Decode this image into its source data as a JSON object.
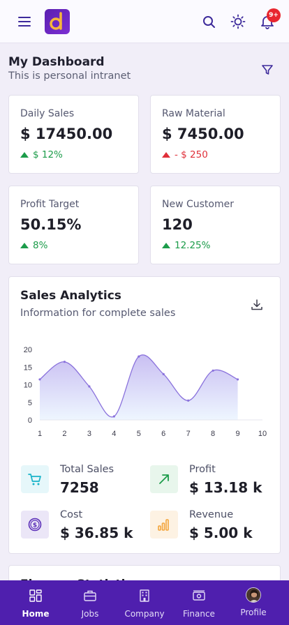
{
  "topbar": {
    "notification_count": "9+",
    "icons": [
      "menu-icon",
      "app-logo",
      "search-icon",
      "sun-icon",
      "bell-icon"
    ]
  },
  "header": {
    "title": "My Dashboard",
    "subtitle": "This is personal intranet"
  },
  "stats": [
    {
      "label": "Daily Sales",
      "value": "$ 17450.00",
      "change": "$ 12%",
      "trend": "up"
    },
    {
      "label": "Raw Material",
      "value": "$ 7450.00",
      "change": "- $ 250",
      "trend": "down"
    },
    {
      "label": "Profit Target",
      "value": "50.15%",
      "change": "8%",
      "trend": "up"
    },
    {
      "label": "New Customer",
      "value": "120",
      "change": "12.25%",
      "trend": "up"
    }
  ],
  "analytics": {
    "title": "Sales Analytics",
    "subtitle": "Information for complete sales"
  },
  "chart_data": {
    "type": "area",
    "x": [
      1,
      2,
      3,
      4,
      5,
      6,
      7,
      8,
      9,
      10
    ],
    "series": [
      {
        "values": [
          11.5,
          16.5,
          9.5,
          1,
          18,
          13,
          5.5,
          14,
          11.5,
          null
        ]
      }
    ],
    "xlim": [
      1,
      10
    ],
    "ylim": [
      0,
      20
    ],
    "xticks": [
      "1",
      "2",
      "3",
      "4",
      "5",
      "6",
      "7",
      "8",
      "9",
      "10"
    ],
    "yticks": [
      "0",
      "5",
      "10",
      "15",
      "20"
    ],
    "grid": false,
    "colors": {
      "line": "#8a72dc",
      "fill_top": "#c9bff2",
      "fill_bottom": "#eef6ff"
    }
  },
  "metrics": [
    {
      "label": "Total Sales",
      "value": "7258",
      "icon": "cart-icon",
      "color": "#19b4c9",
      "bg": "#e6f7fa"
    },
    {
      "label": "Profit",
      "value": "$ 13.18 k",
      "icon": "trend-up-icon",
      "color": "#1c9c4a",
      "bg": "#e8f6ec"
    },
    {
      "label": "Cost",
      "value": "$ 36.85 k",
      "icon": "dollar-coin-icon",
      "color": "#5b2fb8",
      "bg": "#ebe6f7"
    },
    {
      "label": "Revenue",
      "value": "$ 5.00 k",
      "icon": "bar-chart-icon",
      "color": "#f3a43a",
      "bg": "#fdf2e3"
    }
  ],
  "finance": {
    "title": "Finance Statistics"
  },
  "nav": {
    "items": [
      {
        "label": "Home",
        "icon": "home-grid-icon",
        "active": true
      },
      {
        "label": "Jobs",
        "icon": "briefcase-icon",
        "active": false
      },
      {
        "label": "Company",
        "icon": "building-icon",
        "active": false
      },
      {
        "label": "Finance",
        "icon": "money-icon",
        "active": false
      },
      {
        "label": "Profile",
        "icon": "avatar",
        "active": false
      }
    ]
  }
}
